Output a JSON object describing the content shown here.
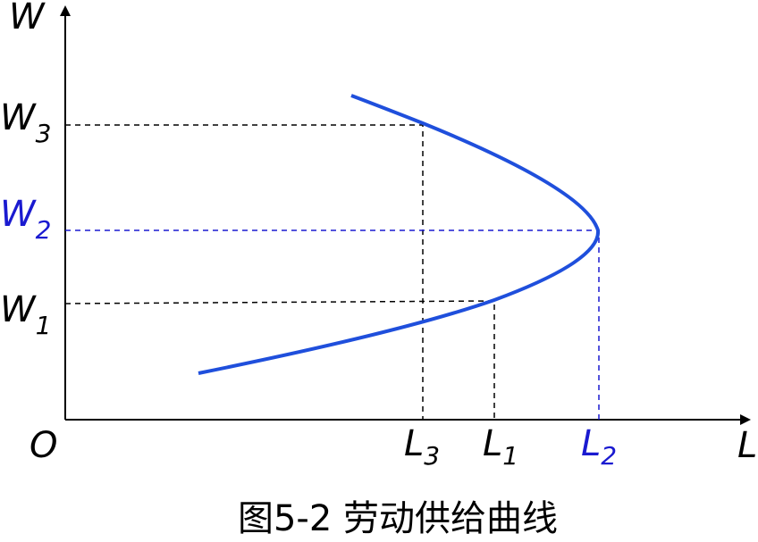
{
  "axes": {
    "y_label": "W",
    "x_label": "L",
    "origin": "O"
  },
  "y_levels": [
    {
      "main": "W",
      "sub": "3"
    },
    {
      "main": "W",
      "sub": "2"
    },
    {
      "main": "W",
      "sub": "1"
    }
  ],
  "x_levels": [
    {
      "main": "L",
      "sub": "3"
    },
    {
      "main": "L",
      "sub": "1"
    },
    {
      "main": "L",
      "sub": "2"
    }
  ],
  "caption": "图5-2 劳动供给曲线"
}
